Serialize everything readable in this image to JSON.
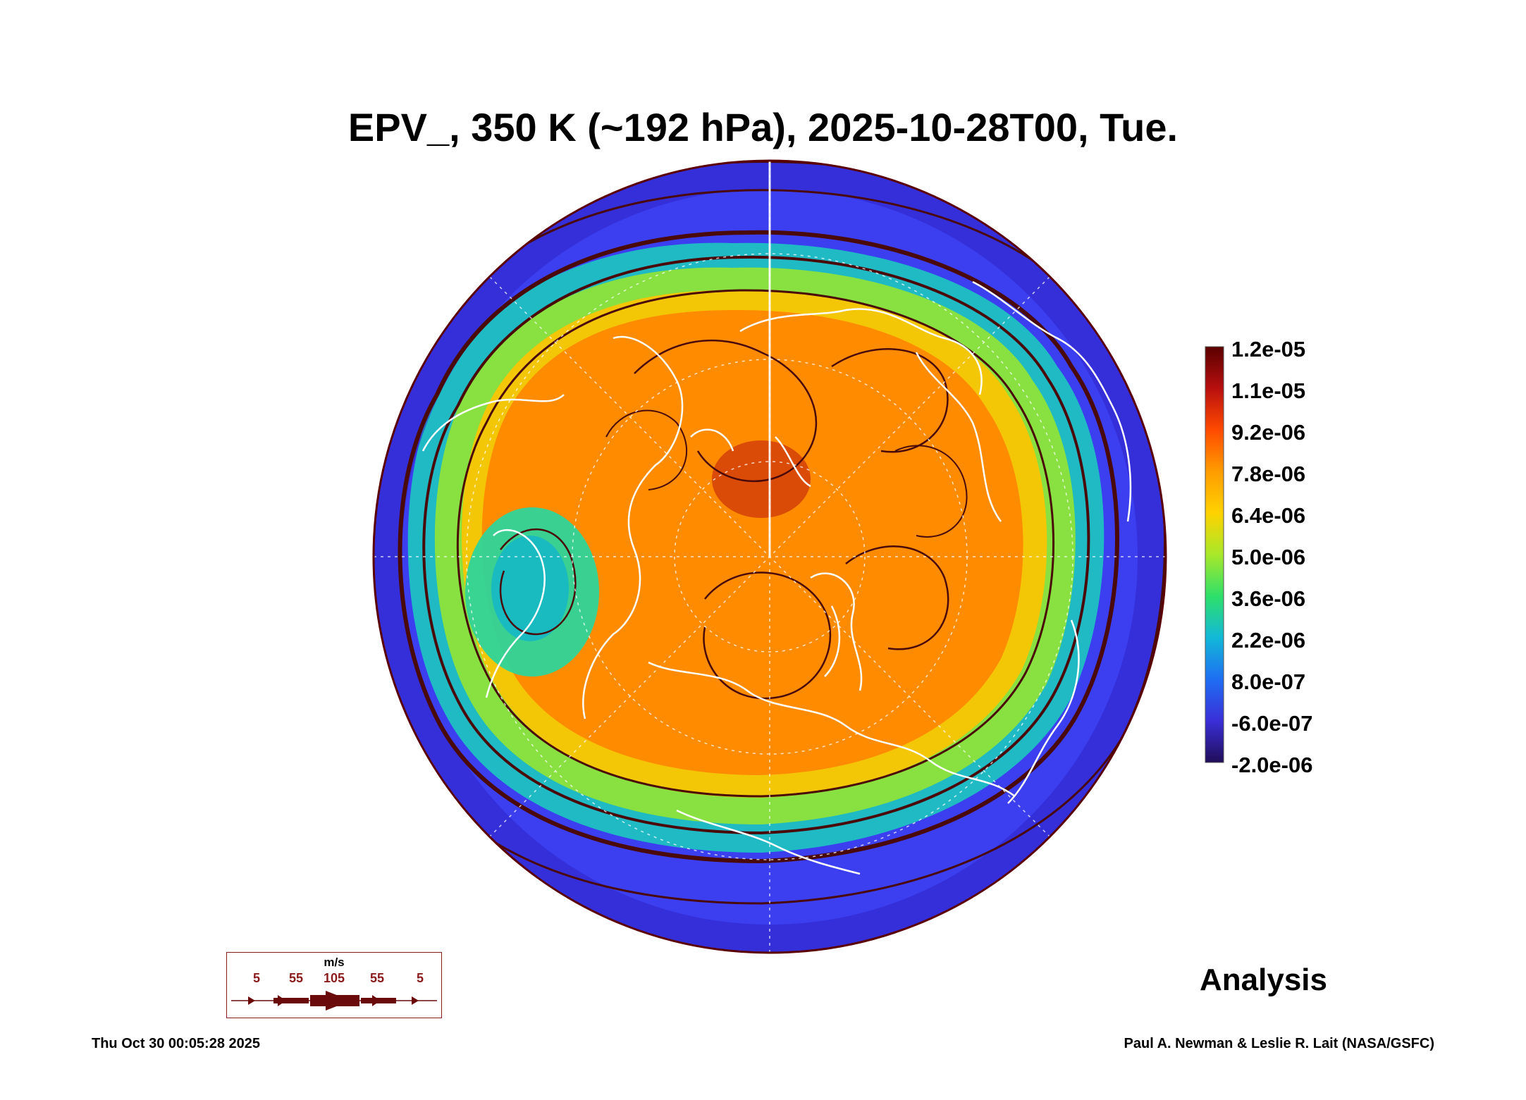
{
  "title": "EPV_, 350 K (~192 hPa), 2025-10-28T00, Tue.",
  "colorbar": {
    "labels": [
      "1.2e-05",
      "1.1e-05",
      "9.2e-06",
      "7.8e-06",
      "6.4e-06",
      "5.0e-06",
      "3.6e-06",
      "2.2e-06",
      "8.0e-07",
      "-6.0e-07",
      "-2.0e-06"
    ],
    "colors": [
      "#5a0000",
      "#b80f0f",
      "#ff4a00",
      "#ff9c00",
      "#ffd200",
      "#a8e82a",
      "#2ee06a",
      "#12b8d8",
      "#1f6ef2",
      "#3a2fd8",
      "#200d58"
    ]
  },
  "map": {
    "projection": "north polar stereographic",
    "ocean_low_pv_color": "#3b3ff0",
    "coastline_color": "#ffffff",
    "streamline_color": "#4a0a0a",
    "grid_color": "#ffffff"
  },
  "wind_legend": {
    "unit": "m/s",
    "values": [
      "5",
      "55",
      "105",
      "55",
      "5"
    ],
    "color": "#6b0a0a"
  },
  "stamp": "Analysis",
  "footer": {
    "date": "Thu Oct 30 00:05:28 2025",
    "credit": "Paul A. Newman & Leslie R. Lait (NASA/GSFC)"
  }
}
